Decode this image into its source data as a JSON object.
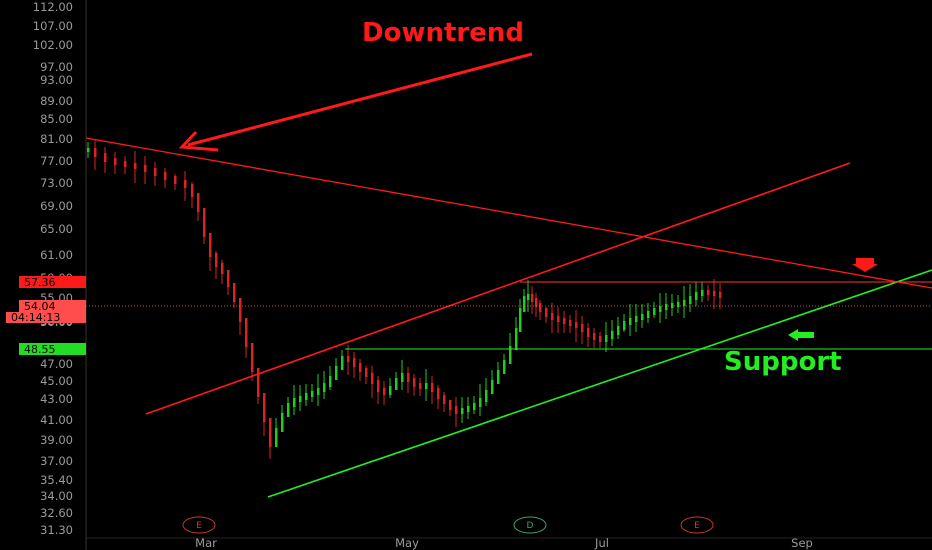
{
  "chart_data": {
    "type": "candlestick",
    "x_axis": {
      "tick_labels": [
        "Mar",
        "May",
        "Jul",
        "Sep"
      ]
    },
    "y_axis": {
      "tick_labels": [
        "112.00",
        "107.00",
        "102.00",
        "97.00",
        "93.00",
        "89.00",
        "85.00",
        "81.00",
        "77.00",
        "73.00",
        "69.00",
        "65.00",
        "61.00",
        "59.00",
        "55.00",
        "52.00",
        "50.00",
        "47.00",
        "45.00",
        "43.00",
        "41.00",
        "39.00",
        "37.00",
        "35.40",
        "34.00",
        "32.60",
        "31.30"
      ]
    },
    "price_tags": [
      {
        "label": "57.36",
        "color": "#ff1a1a"
      },
      {
        "label": "54.04",
        "color": "#ff4d4d"
      },
      {
        "label": "04:14:13",
        "color": "#ff4d4d"
      },
      {
        "label": "48.55",
        "color": "#22dd22"
      }
    ],
    "annotations": [
      {
        "text": "Downtrend",
        "color": "#ff1a1a"
      },
      {
        "text": "Support",
        "color": "#22ee22"
      }
    ],
    "event_markers": [
      {
        "label": "E",
        "color": "#cc3333"
      },
      {
        "label": "D",
        "color": "#33aa66"
      },
      {
        "label": "E",
        "color": "#cc3333"
      }
    ],
    "colors": {
      "up": "#22cc22",
      "down": "#dd2222",
      "downtrend": "#ff1a1a",
      "support": "#22ee22",
      "axis_text": "#9a9a9a"
    }
  }
}
